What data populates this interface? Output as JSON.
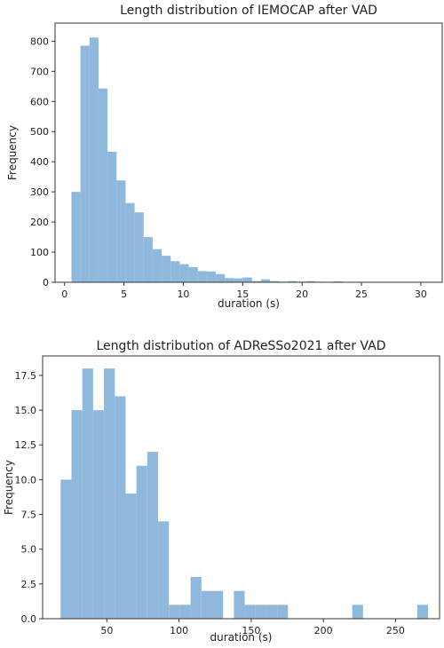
{
  "chart_data": [
    {
      "type": "bar",
      "title": "Length distribution of IEMOCAP after VAD",
      "xlabel": "duration (s)",
      "ylabel": "Frequency",
      "xlim": [
        -0.8,
        31.8
      ],
      "ylim": [
        0,
        860
      ],
      "xticks": [
        0,
        5,
        10,
        15,
        20,
        25,
        30
      ],
      "yticks": [
        0,
        100,
        200,
        300,
        400,
        500,
        600,
        700,
        800
      ],
      "bar_color": "#8fb9dc",
      "bins": [
        {
          "x0": 0.58,
          "x1": 1.34,
          "value": 300
        },
        {
          "x0": 1.34,
          "x1": 2.1,
          "value": 785
        },
        {
          "x0": 2.1,
          "x1": 2.86,
          "value": 812
        },
        {
          "x0": 2.86,
          "x1": 3.62,
          "value": 643
        },
        {
          "x0": 3.62,
          "x1": 4.38,
          "value": 433
        },
        {
          "x0": 4.38,
          "x1": 5.14,
          "value": 338
        },
        {
          "x0": 5.14,
          "x1": 5.9,
          "value": 263
        },
        {
          "x0": 5.9,
          "x1": 6.66,
          "value": 232
        },
        {
          "x0": 6.66,
          "x1": 7.42,
          "value": 150
        },
        {
          "x0": 7.42,
          "x1": 8.18,
          "value": 110
        },
        {
          "x0": 8.18,
          "x1": 8.94,
          "value": 88
        },
        {
          "x0": 8.94,
          "x1": 9.7,
          "value": 70
        },
        {
          "x0": 9.7,
          "x1": 10.46,
          "value": 60
        },
        {
          "x0": 10.46,
          "x1": 11.22,
          "value": 50
        },
        {
          "x0": 11.22,
          "x1": 11.98,
          "value": 37
        },
        {
          "x0": 11.98,
          "x1": 12.74,
          "value": 36
        },
        {
          "x0": 12.74,
          "x1": 13.5,
          "value": 27
        },
        {
          "x0": 13.5,
          "x1": 14.26,
          "value": 14
        },
        {
          "x0": 14.26,
          "x1": 15.02,
          "value": 13
        },
        {
          "x0": 15.02,
          "x1": 15.78,
          "value": 16
        },
        {
          "x0": 15.78,
          "x1": 16.54,
          "value": 4
        },
        {
          "x0": 16.54,
          "x1": 17.3,
          "value": 10
        },
        {
          "x0": 17.3,
          "x1": 18.06,
          "value": 4
        },
        {
          "x0": 18.06,
          "x1": 18.82,
          "value": 2
        },
        {
          "x0": 18.82,
          "x1": 19.58,
          "value": 4
        },
        {
          "x0": 19.58,
          "x1": 20.34,
          "value": 2
        },
        {
          "x0": 20.34,
          "x1": 21.1,
          "value": 4
        },
        {
          "x0": 21.1,
          "x1": 21.86,
          "value": 2
        },
        {
          "x0": 21.86,
          "x1": 22.62,
          "value": 1
        },
        {
          "x0": 22.62,
          "x1": 23.38,
          "value": 3
        },
        {
          "x0": 23.38,
          "x1": 24.14,
          "value": 1
        },
        {
          "x0": 24.14,
          "x1": 24.9,
          "value": 1
        },
        {
          "x0": 24.9,
          "x1": 25.66,
          "value": 1
        },
        {
          "x0": 25.66,
          "x1": 26.42,
          "value": 1
        },
        {
          "x0": 26.42,
          "x1": 27.18,
          "value": 1
        },
        {
          "x0": 27.18,
          "x1": 27.94,
          "value": 1
        },
        {
          "x0": 27.94,
          "x1": 28.7,
          "value": 1
        },
        {
          "x0": 28.7,
          "x1": 29.46,
          "value": 1
        },
        {
          "x0": 29.46,
          "x1": 30.22,
          "value": 1
        },
        {
          "x0": 30.22,
          "x1": 30.98,
          "value": 1
        }
      ]
    },
    {
      "type": "bar",
      "title": "Length distribution of ADReSSo2021 after VAD",
      "xlabel": "duration (s)",
      "ylabel": "Frequency",
      "xlim": [
        5.5,
        280.5
      ],
      "ylim": [
        0,
        18.9
      ],
      "xticks": [
        50,
        100,
        150,
        200,
        250
      ],
      "yticks": [
        0.0,
        2.5,
        5.0,
        7.5,
        10.0,
        12.5,
        15.0,
        17.5
      ],
      "ytick_labels": [
        "0.0",
        "2.5",
        "5.0",
        "7.5",
        "10.0",
        "12.5",
        "15.0",
        "17.5"
      ],
      "bar_color": "#8fb9dc",
      "bins": [
        {
          "x0": 18.0,
          "x1": 25.5,
          "value": 10
        },
        {
          "x0": 25.5,
          "x1": 33.0,
          "value": 15
        },
        {
          "x0": 33.0,
          "x1": 40.5,
          "value": 18
        },
        {
          "x0": 40.5,
          "x1": 48.0,
          "value": 15
        },
        {
          "x0": 48.0,
          "x1": 55.5,
          "value": 18
        },
        {
          "x0": 55.5,
          "x1": 63.0,
          "value": 16
        },
        {
          "x0": 63.0,
          "x1": 70.5,
          "value": 9
        },
        {
          "x0": 70.5,
          "x1": 78.0,
          "value": 11
        },
        {
          "x0": 78.0,
          "x1": 85.5,
          "value": 12
        },
        {
          "x0": 85.5,
          "x1": 93.0,
          "value": 7
        },
        {
          "x0": 93.0,
          "x1": 100.5,
          "value": 1
        },
        {
          "x0": 100.5,
          "x1": 108.0,
          "value": 1
        },
        {
          "x0": 108.0,
          "x1": 115.5,
          "value": 3
        },
        {
          "x0": 115.5,
          "x1": 123.0,
          "value": 2
        },
        {
          "x0": 123.0,
          "x1": 130.5,
          "value": 2
        },
        {
          "x0": 130.5,
          "x1": 138.0,
          "value": 0
        },
        {
          "x0": 138.0,
          "x1": 145.5,
          "value": 2
        },
        {
          "x0": 145.5,
          "x1": 153.0,
          "value": 1
        },
        {
          "x0": 153.0,
          "x1": 160.5,
          "value": 1
        },
        {
          "x0": 160.5,
          "x1": 168.0,
          "value": 1
        },
        {
          "x0": 168.0,
          "x1": 175.5,
          "value": 1
        },
        {
          "x0": 220.0,
          "x1": 227.5,
          "value": 1
        },
        {
          "x0": 265.0,
          "x1": 272.5,
          "value": 1
        }
      ]
    }
  ]
}
